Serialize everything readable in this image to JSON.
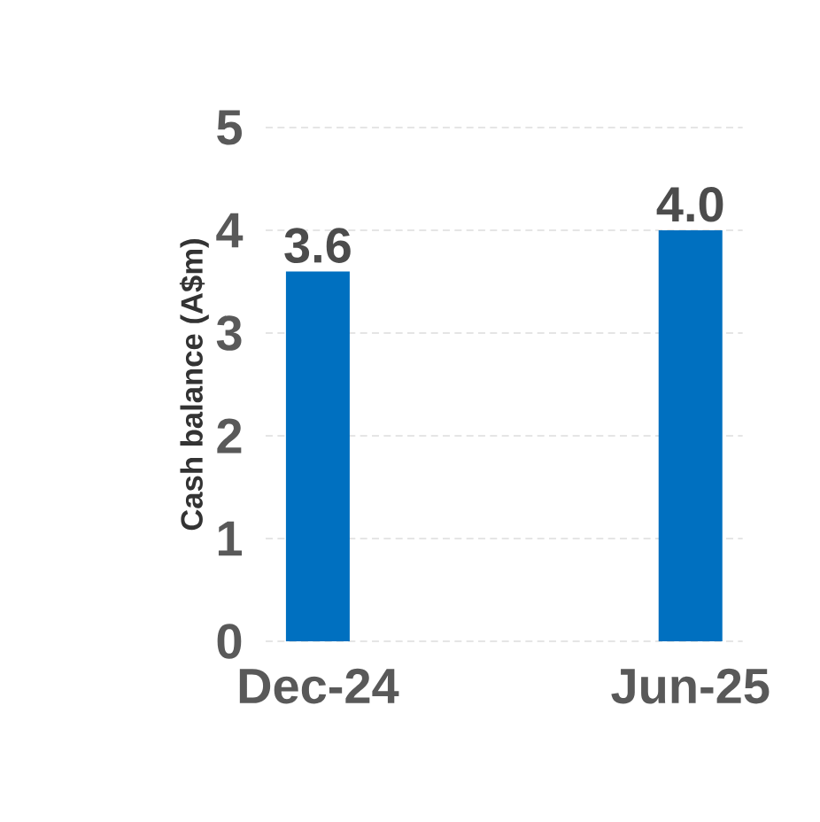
{
  "chart_data": {
    "type": "bar",
    "ylabel": "Cash balance (A$m)",
    "categories": [
      "Dec-24",
      "Jun-25"
    ],
    "values": [
      3.6,
      4.0
    ],
    "color": "#0070c0",
    "value_labels": [
      "3.6",
      "4.0"
    ],
    "ylim": [
      0,
      5
    ],
    "yticks": [
      0,
      1,
      2,
      3,
      4,
      5
    ],
    "grid": "y"
  }
}
